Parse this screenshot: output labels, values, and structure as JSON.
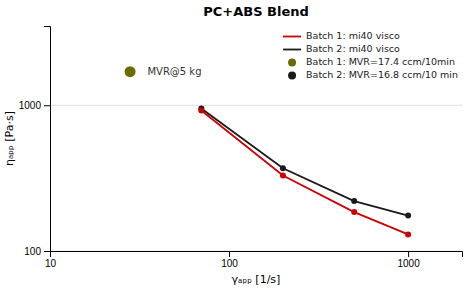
{
  "chart_data": {
    "type": "line",
    "title": "PC+ABS Blend",
    "xlabel": "γₐₚₚ [1/s]",
    "ylabel": "ηₐₚₚ [Pa·s]",
    "log": true,
    "xlim": [
      10,
      2000
    ],
    "ylim": [
      100,
      3500
    ],
    "xticks": [
      10,
      100,
      1000
    ],
    "yticks": [
      100,
      1000
    ],
    "grid": "y",
    "legend": "upper right",
    "series": [
      {
        "name": "Batch 1: mi40 visco",
        "type": "line",
        "marker": "circle",
        "color": "#cc0000",
        "x": [
          70,
          200,
          500,
          1000
        ],
        "values": [
          920,
          330,
          185,
          130
        ]
      },
      {
        "name": "Batch 2: mi40 visco",
        "type": "line",
        "marker": "circle",
        "color": "#1a1a1a",
        "x": [
          70,
          200,
          500,
          1000
        ],
        "values": [
          950,
          370,
          220,
          175
        ]
      },
      {
        "name": "Batch 1: MVR=17.4 ccm/10min",
        "type": "scatter",
        "marker": "circle",
        "color": "#6b6b00",
        "x": [
          28
        ],
        "values": [
          1700
        ]
      },
      {
        "name": "Batch 2: MVR=16.8 ccm/10 min",
        "type": "scatter",
        "marker": "circle",
        "color": "#1a1a1a",
        "x": [],
        "values": []
      }
    ],
    "annotations": [
      {
        "text": "MVR@5 kg",
        "x": 35,
        "y": 1700
      }
    ]
  }
}
